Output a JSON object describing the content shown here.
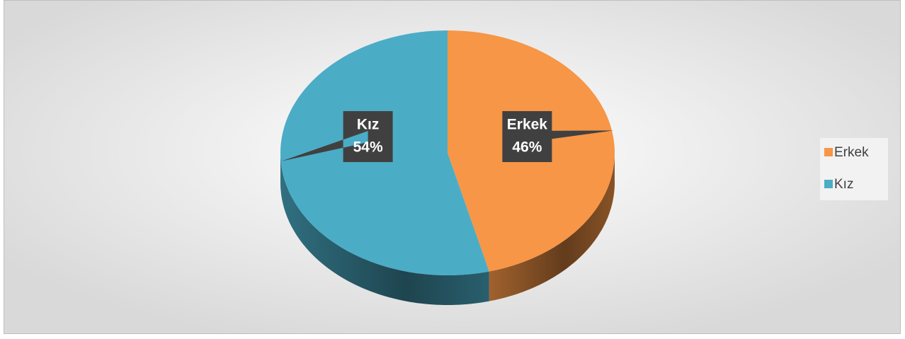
{
  "chart_data": {
    "type": "pie",
    "categories": [
      "Erkek",
      "Kız"
    ],
    "values": [
      46,
      54
    ],
    "value_labels": [
      "46%",
      "54%"
    ],
    "colors": [
      "#f79646",
      "#4bacc6"
    ],
    "legend": "right"
  }
}
